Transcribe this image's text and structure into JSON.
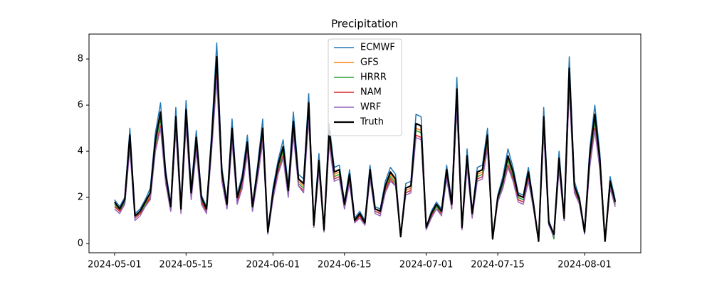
{
  "chart_data": {
    "type": "line",
    "title": "Precipitation",
    "x": [
      "2024-05-01",
      "2024-05-02",
      "2024-05-03",
      "2024-05-04",
      "2024-05-05",
      "2024-05-06",
      "2024-05-07",
      "2024-05-08",
      "2024-05-09",
      "2024-05-10",
      "2024-05-11",
      "2024-05-12",
      "2024-05-13",
      "2024-05-14",
      "2024-05-15",
      "2024-05-16",
      "2024-05-17",
      "2024-05-18",
      "2024-05-19",
      "2024-05-20",
      "2024-05-21",
      "2024-05-22",
      "2024-05-23",
      "2024-05-24",
      "2024-05-25",
      "2024-05-26",
      "2024-05-27",
      "2024-05-28",
      "2024-05-29",
      "2024-05-30",
      "2024-05-31",
      "2024-06-01",
      "2024-06-02",
      "2024-06-03",
      "2024-06-04",
      "2024-06-05",
      "2024-06-06",
      "2024-06-07",
      "2024-06-08",
      "2024-06-09",
      "2024-06-10",
      "2024-06-11",
      "2024-06-12",
      "2024-06-13",
      "2024-06-14",
      "2024-06-15",
      "2024-06-16",
      "2024-06-17",
      "2024-06-18",
      "2024-06-19",
      "2024-06-20",
      "2024-06-21",
      "2024-06-22",
      "2024-06-23",
      "2024-06-24",
      "2024-06-25",
      "2024-06-26",
      "2024-06-27",
      "2024-06-28",
      "2024-06-29",
      "2024-06-30",
      "2024-07-01",
      "2024-07-02",
      "2024-07-03",
      "2024-07-04",
      "2024-07-05",
      "2024-07-06",
      "2024-07-07",
      "2024-07-08",
      "2024-07-09",
      "2024-07-10",
      "2024-07-11",
      "2024-07-12",
      "2024-07-13",
      "2024-07-14",
      "2024-07-15",
      "2024-07-16",
      "2024-07-17",
      "2024-07-18",
      "2024-07-19",
      "2024-07-20",
      "2024-07-21",
      "2024-07-22",
      "2024-07-23",
      "2024-07-24",
      "2024-07-25",
      "2024-07-26",
      "2024-07-27",
      "2024-07-28",
      "2024-07-29",
      "2024-07-30",
      "2024-07-31",
      "2024-08-01",
      "2024-08-02",
      "2024-08-03",
      "2024-08-04",
      "2024-08-05",
      "2024-08-06",
      "2024-08-07"
    ],
    "series": [
      {
        "name": "ECMWF",
        "color": "#1f77b4",
        "width": 1.5,
        "values": [
          1.9,
          1.6,
          2.0,
          5.0,
          1.3,
          1.5,
          1.9,
          2.4,
          4.8,
          6.1,
          3.2,
          1.7,
          5.9,
          1.6,
          6.2,
          2.4,
          4.9,
          2.1,
          1.6,
          4.8,
          8.7,
          3.3,
          1.8,
          5.4,
          2.1,
          3.0,
          4.7,
          1.7,
          3.4,
          5.4,
          0.5,
          2.4,
          3.6,
          4.5,
          2.5,
          5.7,
          3.0,
          2.8,
          6.5,
          0.9,
          3.9,
          0.6,
          5.2,
          3.3,
          3.4,
          1.8,
          3.2,
          1.1,
          1.4,
          1.0,
          3.4,
          1.6,
          1.5,
          2.7,
          3.3,
          3.0,
          0.3,
          2.6,
          2.7,
          5.6,
          5.5,
          0.7,
          1.4,
          1.8,
          1.5,
          3.4,
          1.8,
          7.2,
          0.7,
          4.1,
          1.4,
          3.3,
          3.4,
          5.0,
          0.2,
          2.1,
          2.9,
          4.1,
          3.3,
          2.2,
          2.1,
          3.3,
          1.8,
          0.1,
          5.9,
          1.0,
          0.4,
          4.0,
          1.2,
          8.1,
          2.7,
          2.0,
          0.5,
          4.1,
          6.0,
          3.9,
          0.1,
          2.9,
          1.9
        ]
      },
      {
        "name": "GFS",
        "color": "#ff7f0e",
        "width": 1.5,
        "values": [
          1.7,
          1.5,
          1.8,
          4.6,
          1.2,
          1.4,
          1.7,
          2.1,
          4.4,
          5.5,
          2.9,
          1.6,
          5.3,
          1.5,
          5.6,
          2.1,
          4.5,
          1.9,
          1.5,
          4.4,
          7.9,
          3.0,
          1.6,
          4.9,
          1.9,
          2.7,
          4.3,
          1.6,
          3.1,
          4.9,
          0.5,
          2.1,
          3.3,
          4.1,
          2.2,
          5.1,
          2.7,
          2.5,
          5.9,
          0.8,
          3.5,
          0.6,
          4.8,
          3.0,
          3.1,
          1.6,
          2.9,
          1.0,
          1.3,
          0.9,
          3.1,
          1.5,
          1.4,
          2.4,
          3.0,
          2.7,
          0.3,
          2.3,
          2.4,
          5.0,
          4.9,
          0.7,
          1.3,
          1.6,
          1.4,
          3.1,
          1.6,
          6.5,
          0.7,
          3.7,
          1.3,
          3.0,
          3.1,
          4.6,
          0.2,
          1.9,
          2.6,
          3.7,
          3.0,
          2.0,
          1.9,
          3.0,
          1.6,
          0.1,
          5.3,
          0.9,
          0.4,
          3.6,
          1.1,
          7.4,
          2.4,
          1.8,
          0.5,
          3.7,
          5.4,
          3.5,
          0.1,
          2.6,
          1.7
        ]
      },
      {
        "name": "HRRR",
        "color": "#2ca02c",
        "width": 1.5,
        "values": [
          1.7,
          1.4,
          1.8,
          4.5,
          1.2,
          1.3,
          1.7,
          2.0,
          4.3,
          5.4,
          2.8,
          1.5,
          5.2,
          1.4,
          5.5,
          2.0,
          4.4,
          1.9,
          1.4,
          4.3,
          7.8,
          2.9,
          1.6,
          4.8,
          1.9,
          2.6,
          4.2,
          1.5,
          3.0,
          4.8,
          0.5,
          2.0,
          3.2,
          4.0,
          2.1,
          5.0,
          2.6,
          2.4,
          5.8,
          0.8,
          3.4,
          0.6,
          4.7,
          2.9,
          3.0,
          1.6,
          2.8,
          1.0,
          1.2,
          0.9,
          3.0,
          1.4,
          1.3,
          2.3,
          2.9,
          2.6,
          0.3,
          2.2,
          2.3,
          4.9,
          4.8,
          0.7,
          1.2,
          1.6,
          1.3,
          3.0,
          1.6,
          6.4,
          0.7,
          3.6,
          1.2,
          2.9,
          3.0,
          4.5,
          0.2,
          1.9,
          2.5,
          3.6,
          2.9,
          2.0,
          1.9,
          2.9,
          1.6,
          0.1,
          5.2,
          0.9,
          0.2,
          3.5,
          1.1,
          7.3,
          2.3,
          1.8,
          0.5,
          3.6,
          5.3,
          3.4,
          0.1,
          2.5,
          1.7
        ]
      },
      {
        "name": "NAM",
        "color": "#d62728",
        "width": 1.5,
        "values": [
          1.6,
          1.4,
          1.7,
          4.2,
          1.1,
          1.3,
          1.6,
          2.0,
          4.1,
          5.1,
          2.7,
          1.4,
          5.0,
          1.4,
          5.2,
          2.0,
          4.1,
          1.8,
          1.4,
          4.1,
          7.3,
          2.8,
          1.5,
          4.5,
          1.8,
          2.5,
          4.0,
          1.4,
          2.9,
          4.5,
          0.5,
          2.0,
          3.1,
          3.8,
          2.1,
          4.8,
          2.5,
          2.3,
          5.5,
          0.7,
          3.2,
          0.5,
          4.4,
          2.8,
          2.9,
          1.5,
          2.7,
          0.9,
          1.2,
          0.8,
          2.9,
          1.4,
          1.3,
          2.3,
          2.8,
          2.5,
          0.3,
          2.2,
          2.3,
          4.7,
          4.6,
          0.6,
          1.2,
          1.5,
          1.3,
          2.9,
          1.5,
          6.0,
          0.6,
          3.4,
          1.2,
          2.8,
          2.9,
          4.2,
          0.2,
          1.8,
          2.4,
          3.4,
          2.8,
          1.9,
          1.8,
          2.8,
          1.5,
          0.1,
          5.0,
          0.8,
          0.4,
          3.3,
          1.0,
          6.8,
          2.3,
          1.7,
          0.5,
          3.4,
          5.0,
          3.2,
          0.1,
          2.4,
          1.6
        ]
      },
      {
        "name": "WRF",
        "color": "#9467bd",
        "width": 1.5,
        "values": [
          1.5,
          1.3,
          1.7,
          4.1,
          1.0,
          1.2,
          1.6,
          1.9,
          4.0,
          5.0,
          2.6,
          1.4,
          4.9,
          1.3,
          5.1,
          1.9,
          4.0,
          1.7,
          1.3,
          4.0,
          7.1,
          2.7,
          1.5,
          4.4,
          1.7,
          2.4,
          3.9,
          1.4,
          2.8,
          4.4,
          0.4,
          1.9,
          3.0,
          3.7,
          2.0,
          4.7,
          2.5,
          2.2,
          5.4,
          0.7,
          3.2,
          0.5,
          4.3,
          2.7,
          2.8,
          1.5,
          2.6,
          0.9,
          1.1,
          0.8,
          2.8,
          1.3,
          1.2,
          2.2,
          2.7,
          2.5,
          0.3,
          2.1,
          2.2,
          4.6,
          4.5,
          0.6,
          1.1,
          1.5,
          1.2,
          2.8,
          1.5,
          5.9,
          0.6,
          3.3,
          1.1,
          2.7,
          2.8,
          4.1,
          0.2,
          1.8,
          2.4,
          3.3,
          2.7,
          1.8,
          1.7,
          2.7,
          1.5,
          0.1,
          4.8,
          0.8,
          0.3,
          3.2,
          1.0,
          6.7,
          2.2,
          1.7,
          0.4,
          3.3,
          4.9,
          3.2,
          0.1,
          2.4,
          1.6
        ]
      },
      {
        "name": "Truth",
        "color": "#000000",
        "width": 2.2,
        "values": [
          1.8,
          1.5,
          1.9,
          4.7,
          1.2,
          1.4,
          1.8,
          2.2,
          4.5,
          5.7,
          3.0,
          1.6,
          5.5,
          1.5,
          5.8,
          2.2,
          4.6,
          2.0,
          1.5,
          4.5,
          8.1,
          3.1,
          1.7,
          5.0,
          2.0,
          2.8,
          4.4,
          1.6,
          3.2,
          5.0,
          0.5,
          2.2,
          3.4,
          4.2,
          2.3,
          5.3,
          2.8,
          2.6,
          6.1,
          0.8,
          3.6,
          0.6,
          4.9,
          3.1,
          3.2,
          1.7,
          3.0,
          1.0,
          1.3,
          0.9,
          3.2,
          1.5,
          1.4,
          2.5,
          3.1,
          2.8,
          0.3,
          2.4,
          2.5,
          5.2,
          5.1,
          0.7,
          1.3,
          1.7,
          1.4,
          3.2,
          1.7,
          6.7,
          0.7,
          3.8,
          1.3,
          3.1,
          3.2,
          4.7,
          0.2,
          2.0,
          2.7,
          3.8,
          3.1,
          2.1,
          2.0,
          3.1,
          1.7,
          0.1,
          5.5,
          0.9,
          0.4,
          3.7,
          1.1,
          7.6,
          2.5,
          1.9,
          0.5,
          3.8,
          5.6,
          3.6,
          0.1,
          2.7,
          1.8
        ]
      }
    ],
    "xlim": [
      "2024-04-26",
      "2024-08-12"
    ],
    "xticks": [
      "2024-05-01",
      "2024-05-15",
      "2024-06-01",
      "2024-06-15",
      "2024-07-01",
      "2024-07-15",
      "2024-08-01"
    ],
    "ylim": [
      -0.4,
      9.08
    ],
    "yticks": [
      0,
      2,
      4,
      6,
      8
    ],
    "legend": "upper center"
  }
}
